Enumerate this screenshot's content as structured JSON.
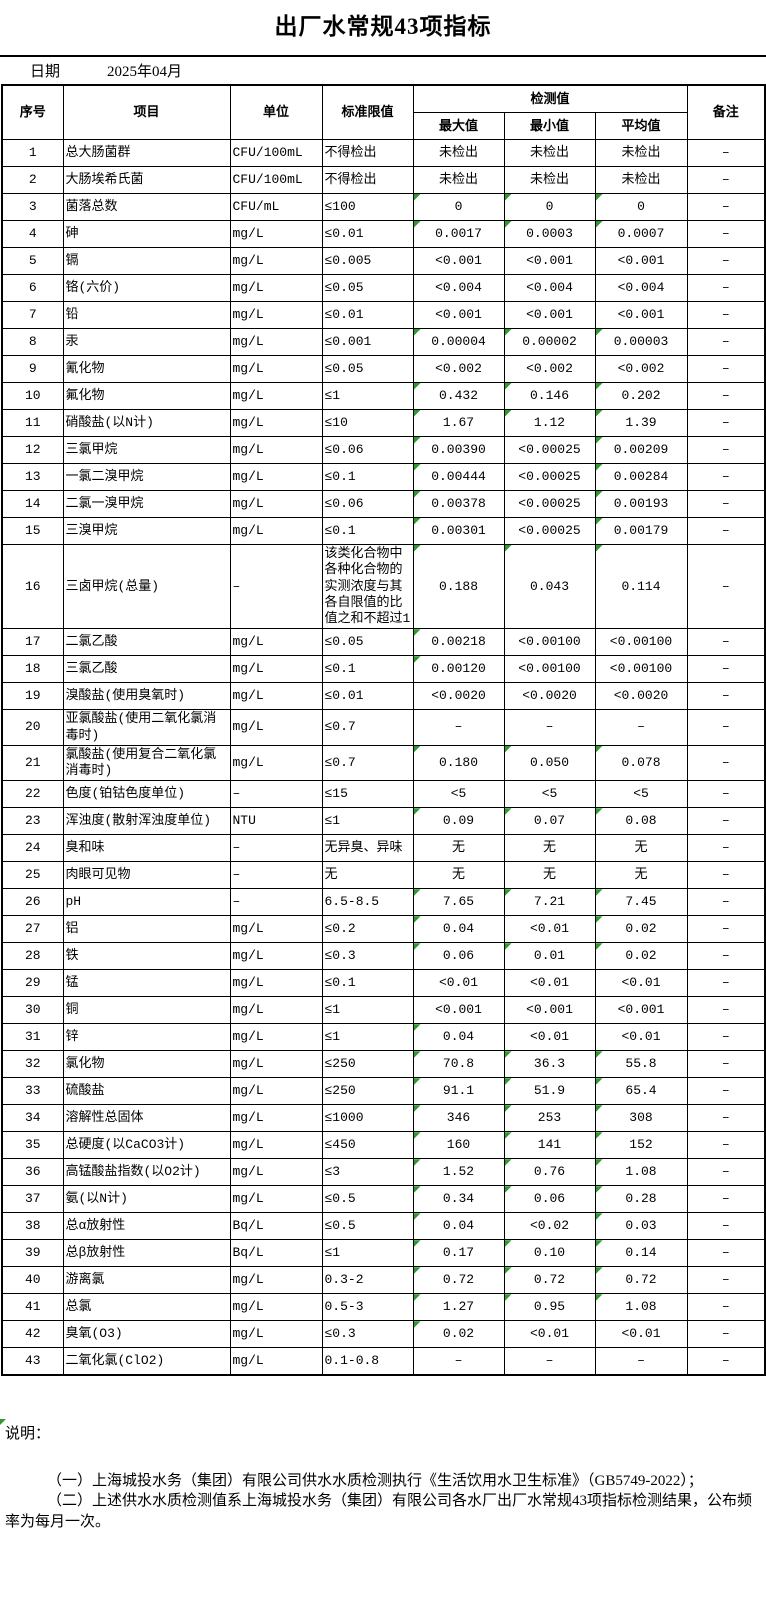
{
  "title": "出厂水常规43项指标",
  "date": {
    "label": "日期",
    "value": "2025年04月"
  },
  "colors": {
    "marker_green": "#2E9B2E",
    "border_black": "#000000"
  },
  "table": {
    "headers": {
      "seq": "序号",
      "item": "项目",
      "unit": "单位",
      "limit": "标准限值",
      "detection": "检测值",
      "max": "最大值",
      "min": "最小值",
      "avg": "平均值",
      "remark": "备注"
    },
    "rows": [
      {
        "no": "1",
        "item": "总大肠菌群",
        "unit": "CFU/100mL",
        "limit": "不得检出",
        "max": "未检出",
        "min": "未检出",
        "avg": "未检出",
        "remark": "–"
      },
      {
        "no": "2",
        "item": "大肠埃希氏菌",
        "unit": "CFU/100mL",
        "limit": "不得检出",
        "max": "未检出",
        "min": "未检出",
        "avg": "未检出",
        "remark": "–"
      },
      {
        "no": "3",
        "item": "菌落总数",
        "unit": "CFU/mL",
        "limit": "≤100",
        "max": "0",
        "min": "0",
        "avg": "0",
        "remark": "–"
      },
      {
        "no": "4",
        "item": "砷",
        "unit": "mg/L",
        "limit": "≤0.01",
        "max": "0.0017",
        "min": "0.0003",
        "avg": "0.0007",
        "remark": "–"
      },
      {
        "no": "5",
        "item": "镉",
        "unit": "mg/L",
        "limit": "≤0.005",
        "max": "<0.001",
        "min": "<0.001",
        "avg": "<0.001",
        "remark": "–"
      },
      {
        "no": "6",
        "item": "铬(六价)",
        "unit": "mg/L",
        "limit": "≤0.05",
        "max": "<0.004",
        "min": "<0.004",
        "avg": "<0.004",
        "remark": "–"
      },
      {
        "no": "7",
        "item": "铅",
        "unit": "mg/L",
        "limit": "≤0.01",
        "max": "<0.001",
        "min": "<0.001",
        "avg": "<0.001",
        "remark": "–"
      },
      {
        "no": "8",
        "item": "汞",
        "unit": "mg/L",
        "limit": "≤0.001",
        "max": "0.00004",
        "min": "0.00002",
        "avg": "0.00003",
        "remark": "–"
      },
      {
        "no": "9",
        "item": "氰化物",
        "unit": "mg/L",
        "limit": "≤0.05",
        "max": "<0.002",
        "min": "<0.002",
        "avg": "<0.002",
        "remark": "–"
      },
      {
        "no": "10",
        "item": "氟化物",
        "unit": "mg/L",
        "limit": "≤1",
        "max": "0.432",
        "min": "0.146",
        "avg": "0.202",
        "remark": "–"
      },
      {
        "no": "11",
        "item": "硝酸盐(以N计)",
        "unit": "mg/L",
        "limit": "≤10",
        "max": "1.67",
        "min": "1.12",
        "avg": "1.39",
        "remark": "–"
      },
      {
        "no": "12",
        "item": "三氯甲烷",
        "unit": "mg/L",
        "limit": "≤0.06",
        "max": "0.00390",
        "min": "<0.00025",
        "avg": "0.00209",
        "remark": "–"
      },
      {
        "no": "13",
        "item": "一氯二溴甲烷",
        "unit": "mg/L",
        "limit": "≤0.1",
        "max": "0.00444",
        "min": "<0.00025",
        "avg": "0.00284",
        "remark": "–"
      },
      {
        "no": "14",
        "item": "二氯一溴甲烷",
        "unit": "mg/L",
        "limit": "≤0.06",
        "max": "0.00378",
        "min": "<0.00025",
        "avg": "0.00193",
        "remark": "–"
      },
      {
        "no": "15",
        "item": "三溴甲烷",
        "unit": "mg/L",
        "limit": "≤0.1",
        "max": "0.00301",
        "min": "<0.00025",
        "avg": "0.00179",
        "remark": "–"
      },
      {
        "no": "16",
        "item": "三卤甲烷(总量)",
        "unit": "–",
        "limit": "该类化合物中各种化合物的实测浓度与其各自限值的比值之和不超过1",
        "max": "0.188",
        "min": "0.043",
        "avg": "0.114",
        "remark": "–"
      },
      {
        "no": "17",
        "item": "二氯乙酸",
        "unit": "mg/L",
        "limit": "≤0.05",
        "max": "0.00218",
        "min": "<0.00100",
        "avg": "<0.00100",
        "remark": "–"
      },
      {
        "no": "18",
        "item": "三氯乙酸",
        "unit": "mg/L",
        "limit": "≤0.1",
        "max": "0.00120",
        "min": "<0.00100",
        "avg": "<0.00100",
        "remark": "–"
      },
      {
        "no": "19",
        "item": "溴酸盐(使用臭氧时)",
        "unit": "mg/L",
        "limit": "≤0.01",
        "max": "<0.0020",
        "min": "<0.0020",
        "avg": "<0.0020",
        "remark": "–"
      },
      {
        "no": "20",
        "item": "亚氯酸盐(使用二氧化氯消毒时)",
        "unit": "mg/L",
        "limit": "≤0.7",
        "max": "–",
        "min": "–",
        "avg": "–",
        "remark": "–"
      },
      {
        "no": "21",
        "item": "氯酸盐(使用复合二氧化氯消毒时)",
        "unit": "mg/L",
        "limit": "≤0.7",
        "max": "0.180",
        "min": "0.050",
        "avg": "0.078",
        "remark": "–"
      },
      {
        "no": "22",
        "item": "色度(铂钴色度单位)",
        "unit": "–",
        "limit": "≤15",
        "max": "<5",
        "min": "<5",
        "avg": "<5",
        "remark": "–"
      },
      {
        "no": "23",
        "item": "浑浊度(散射浑浊度单位)",
        "unit": "NTU",
        "limit": "≤1",
        "max": "0.09",
        "min": "0.07",
        "avg": "0.08",
        "remark": "–"
      },
      {
        "no": "24",
        "item": "臭和味",
        "unit": "–",
        "limit": "无异臭、异味",
        "max": "无",
        "min": "无",
        "avg": "无",
        "remark": "–"
      },
      {
        "no": "25",
        "item": "肉眼可见物",
        "unit": "–",
        "limit": "无",
        "max": "无",
        "min": "无",
        "avg": "无",
        "remark": "–"
      },
      {
        "no": "26",
        "item": "pH",
        "unit": "–",
        "limit": "6.5-8.5",
        "max": "7.65",
        "min": "7.21",
        "avg": "7.45",
        "remark": "–"
      },
      {
        "no": "27",
        "item": "铝",
        "unit": "mg/L",
        "limit": "≤0.2",
        "max": "0.04",
        "min": "<0.01",
        "avg": "0.02",
        "remark": "–"
      },
      {
        "no": "28",
        "item": "铁",
        "unit": "mg/L",
        "limit": "≤0.3",
        "max": "0.06",
        "min": "0.01",
        "avg": "0.02",
        "remark": "–"
      },
      {
        "no": "29",
        "item": "锰",
        "unit": "mg/L",
        "limit": "≤0.1",
        "max": "<0.01",
        "min": "<0.01",
        "avg": "<0.01",
        "remark": "–"
      },
      {
        "no": "30",
        "item": "铜",
        "unit": "mg/L",
        "limit": "≤1",
        "max": "<0.001",
        "min": "<0.001",
        "avg": "<0.001",
        "remark": "–"
      },
      {
        "no": "31",
        "item": "锌",
        "unit": "mg/L",
        "limit": "≤1",
        "max": "0.04",
        "min": "<0.01",
        "avg": "<0.01",
        "remark": "–"
      },
      {
        "no": "32",
        "item": "氯化物",
        "unit": "mg/L",
        "limit": "≤250",
        "max": "70.8",
        "min": "36.3",
        "avg": "55.8",
        "remark": "–"
      },
      {
        "no": "33",
        "item": "硫酸盐",
        "unit": "mg/L",
        "limit": "≤250",
        "max": "91.1",
        "min": "51.9",
        "avg": "65.4",
        "remark": "–"
      },
      {
        "no": "34",
        "item": "溶解性总固体",
        "unit": "mg/L",
        "limit": "≤1000",
        "max": "346",
        "min": "253",
        "avg": "308",
        "remark": "–"
      },
      {
        "no": "35",
        "item": "总硬度(以CaCO3计)",
        "unit": "mg/L",
        "limit": "≤450",
        "max": "160",
        "min": "141",
        "avg": "152",
        "remark": "–"
      },
      {
        "no": "36",
        "item": "高锰酸盐指数(以O2计)",
        "unit": "mg/L",
        "limit": "≤3",
        "max": "1.52",
        "min": "0.76",
        "avg": "1.08",
        "remark": "–"
      },
      {
        "no": "37",
        "item": "氨(以N计)",
        "unit": "mg/L",
        "limit": "≤0.5",
        "max": "0.34",
        "min": "0.06",
        "avg": "0.28",
        "remark": "–"
      },
      {
        "no": "38",
        "item": "总α放射性",
        "unit": "Bq/L",
        "limit": "≤0.5",
        "max": "0.04",
        "min": "<0.02",
        "avg": "0.03",
        "remark": "–"
      },
      {
        "no": "39",
        "item": "总β放射性",
        "unit": "Bq/L",
        "limit": "≤1",
        "max": "0.17",
        "min": "0.10",
        "avg": "0.14",
        "remark": "–"
      },
      {
        "no": "40",
        "item": "游离氯",
        "unit": "mg/L",
        "limit": "0.3-2",
        "max": "0.72",
        "min": "0.72",
        "avg": "0.72",
        "remark": "–"
      },
      {
        "no": "41",
        "item": "总氯",
        "unit": "mg/L",
        "limit": "0.5-3",
        "max": "1.27",
        "min": "0.95",
        "avg": "1.08",
        "remark": "–"
      },
      {
        "no": "42",
        "item": "臭氧(O3)",
        "unit": "mg/L",
        "limit": "≤0.3",
        "max": "0.02",
        "min": "<0.01",
        "avg": "<0.01",
        "remark": "–"
      },
      {
        "no": "43",
        "item": "二氧化氯(ClO2)",
        "unit": "mg/L",
        "limit": "0.1-0.8",
        "max": "–",
        "min": "–",
        "avg": "–",
        "remark": "–"
      }
    ]
  },
  "notes": {
    "heading": "说明：",
    "lines": [
      "（一）上海城投水务（集团）有限公司供水水质检测执行《生活饮用水卫生标准》（GB5749-2022）；",
      "（二）上述供水水质检测值系上海城投水务（集团）有限公司各水厂出厂水常规43项指标检测结果，公布频率为每月一次。"
    ]
  }
}
